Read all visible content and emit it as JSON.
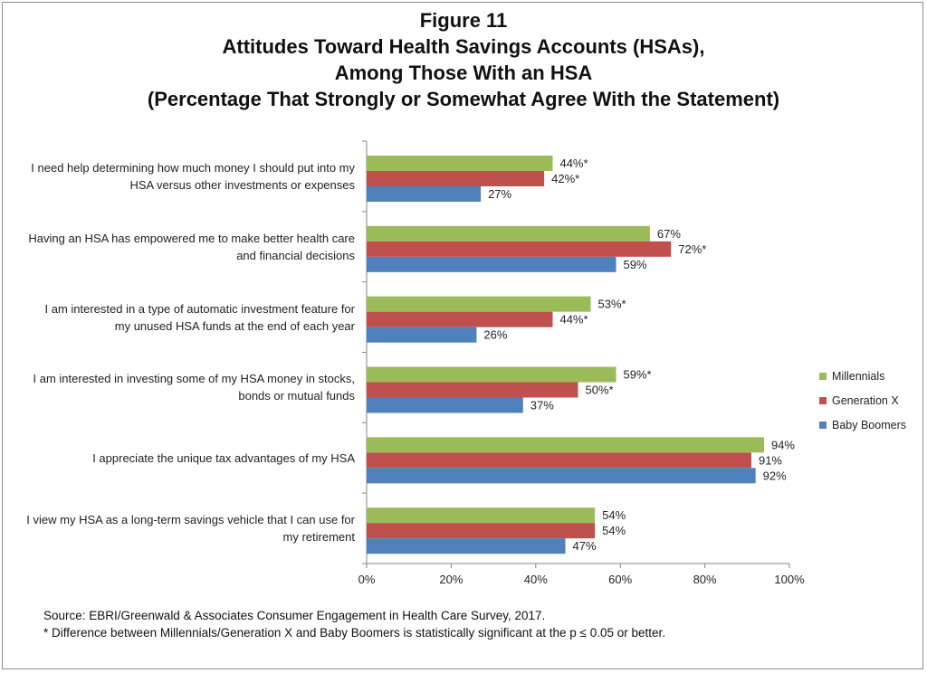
{
  "chart_data": {
    "type": "bar",
    "orientation": "horizontal",
    "title": [
      "Figure 11",
      "Attitudes Toward Health Savings Accounts (HSAs),",
      "Among Those With an HSA",
      "(Percentage That Strongly or Somewhat Agree With the Statement)"
    ],
    "categories": [
      [
        "I need help determining how much money I should put into my",
        "HSA versus other investments or expenses"
      ],
      [
        "Having an HSA has empowered me to make better health care",
        "and financial decisions"
      ],
      [
        "I am interested in a type of automatic investment feature for",
        "my unused HSA funds at the end of each year"
      ],
      [
        "I am interested in investing some of my HSA money in stocks,",
        "bonds or mutual funds"
      ],
      [
        "I appreciate the unique tax advantages of my HSA"
      ],
      [
        "I view my HSA as a long-term savings vehicle that I can use for",
        "my retirement"
      ]
    ],
    "series": [
      {
        "name": "Millennials",
        "color": "#9bbb59",
        "values": [
          44,
          67,
          53,
          59,
          94,
          54
        ],
        "labels": [
          "44%*",
          "67%",
          "53%*",
          "59%*",
          "94%",
          "54%"
        ]
      },
      {
        "name": "Generation X",
        "color": "#c0504d",
        "values": [
          42,
          72,
          44,
          50,
          91,
          54
        ],
        "labels": [
          "42%*",
          "72%*",
          "44%*",
          "50%*",
          "91%",
          "54%"
        ]
      },
      {
        "name": "Baby Boomers",
        "color": "#4f81bd",
        "values": [
          27,
          59,
          26,
          37,
          92,
          47
        ],
        "labels": [
          "27%",
          "59%",
          "26%",
          "37%",
          "92%",
          "47%"
        ]
      }
    ],
    "xlim": [
      0,
      100
    ],
    "xticks": [
      "0%",
      "20%",
      "40%",
      "60%",
      "80%",
      "100%"
    ],
    "grid": false,
    "legend": "right"
  },
  "notes": [
    "Source: EBRI/Greenwald & Associates Consumer Engagement in Health Care Survey, 2017.",
    "* Difference between Millennials/Generation X and Baby Boomers is statistically significant at the p ≤ 0.05 or better."
  ]
}
